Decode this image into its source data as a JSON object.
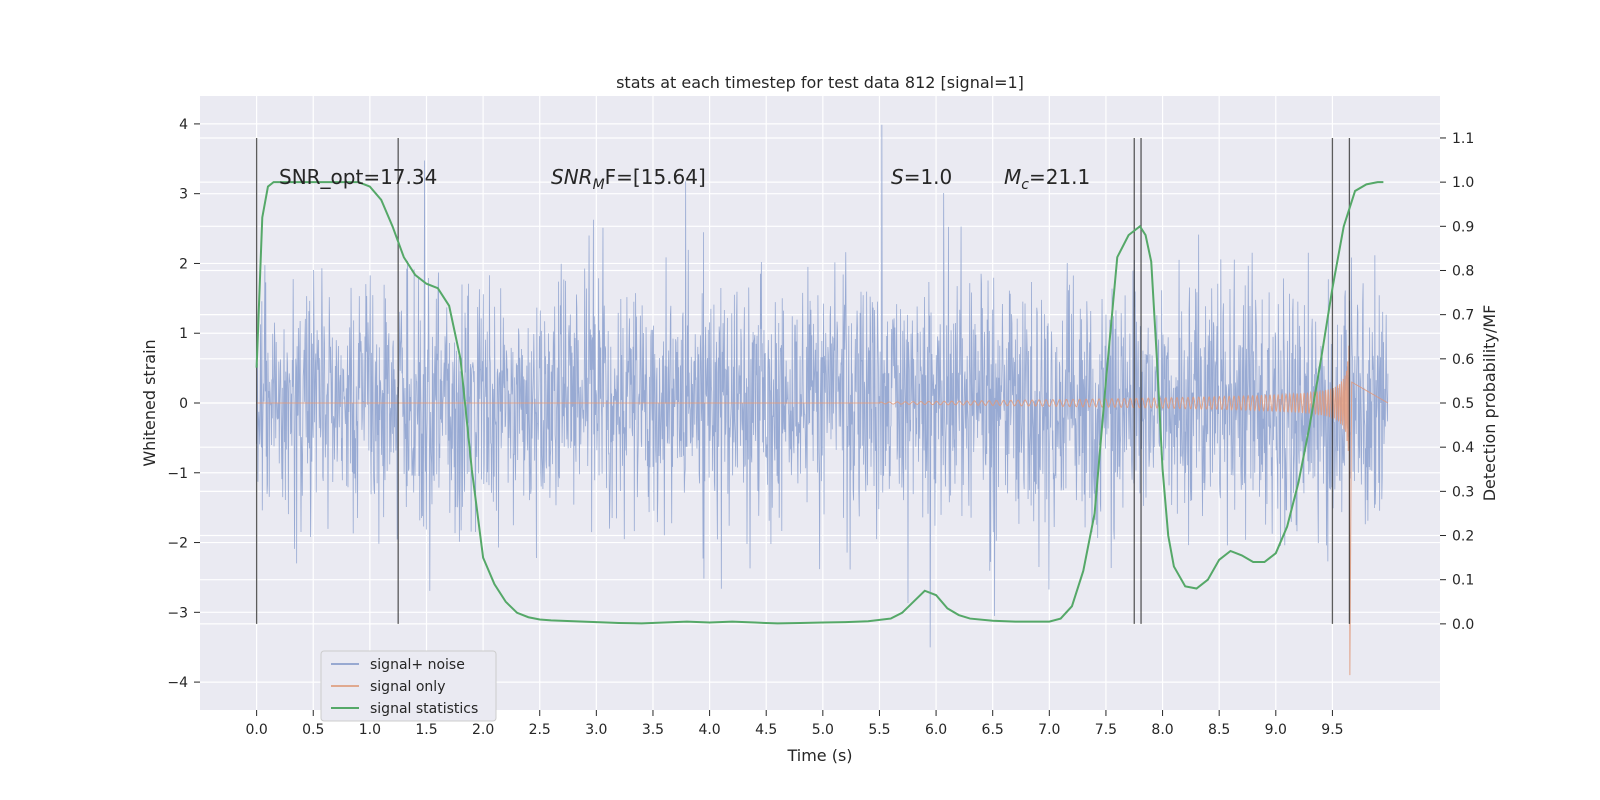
{
  "chart_data": {
    "type": "line",
    "title": "stats at each timestep for test data 812 [signal=1]",
    "xlabel": "Time (s)",
    "ylabel": "Whitened strain",
    "y2label": "Detection probability/MF",
    "xlim": [
      -0.5,
      10.45
    ],
    "ylim": [
      -4.4,
      4.4
    ],
    "y2lim": [
      -0.195,
      1.195
    ],
    "xticks": [
      "0.0",
      "0.5",
      "1.0",
      "1.5",
      "2.0",
      "2.5",
      "3.0",
      "3.5",
      "4.0",
      "4.5",
      "5.0",
      "5.5",
      "6.0",
      "6.5",
      "7.0",
      "7.5",
      "8.0",
      "8.5",
      "9.0",
      "9.5"
    ],
    "yticks": [
      "−4",
      "−3",
      "−2",
      "−1",
      "0",
      "1",
      "2",
      "3",
      "4"
    ],
    "y2ticks": [
      "0.0",
      "0.1",
      "0.2",
      "0.3",
      "0.4",
      "0.5",
      "0.6",
      "0.7",
      "0.8",
      "0.9",
      "1.0",
      "1.1"
    ],
    "grid": true,
    "legend_placement": "lower-left",
    "legend": [
      "signal+ noise",
      "signal only",
      "signal statistics"
    ],
    "annotations": {
      "snr_opt": "SNR_opt=17.34",
      "snr_mf_italic": "SNR",
      "snr_mf_sub": "M",
      "snr_mf_rest": "F=[15.64]",
      "s_italic": "S",
      "s_rest": "=1.0",
      "mc_italic": "M",
      "mc_sub": "c",
      "mc_rest": "=21.1"
    },
    "noise_band": {
      "x_start": 0.0,
      "x_end": 9.99,
      "typical_abs": 1.3,
      "max_abs": 4.0
    },
    "signal_chirp": {
      "x_start": 5.5,
      "x_merger": 9.65,
      "x_end": 9.99,
      "peak": 3.0,
      "trough": -3.9
    },
    "vertical_markers": [
      0.0,
      1.25,
      7.75,
      7.81,
      9.5,
      9.65
    ],
    "series": [
      {
        "name": "signal statistics",
        "axis": "y2",
        "color": "#55a868",
        "x": [
          0.0,
          0.05,
          0.1,
          0.15,
          0.25,
          0.4,
          0.6,
          0.8,
          0.9,
          1.0,
          1.1,
          1.2,
          1.3,
          1.4,
          1.5,
          1.6,
          1.7,
          1.8,
          1.9,
          2.0,
          2.1,
          2.2,
          2.3,
          2.4,
          2.5,
          2.6,
          2.8,
          3.0,
          3.2,
          3.4,
          3.6,
          3.8,
          4.0,
          4.2,
          4.4,
          4.6,
          4.8,
          5.0,
          5.2,
          5.4,
          5.6,
          5.7,
          5.8,
          5.9,
          6.0,
          6.1,
          6.2,
          6.3,
          6.5,
          6.7,
          6.9,
          7.0,
          7.1,
          7.2,
          7.3,
          7.4,
          7.5,
          7.6,
          7.7,
          7.8,
          7.85,
          7.9,
          7.95,
          8.0,
          8.05,
          8.1,
          8.2,
          8.3,
          8.4,
          8.5,
          8.6,
          8.7,
          8.8,
          8.9,
          9.0,
          9.1,
          9.2,
          9.3,
          9.4,
          9.5,
          9.6,
          9.7,
          9.8,
          9.9,
          9.95
        ],
        "values": [
          0.58,
          0.92,
          0.99,
          1.0,
          1.0,
          1.0,
          1.0,
          1.0,
          1.0,
          0.99,
          0.96,
          0.9,
          0.83,
          0.79,
          0.77,
          0.76,
          0.72,
          0.6,
          0.35,
          0.15,
          0.09,
          0.05,
          0.025,
          0.015,
          0.01,
          0.008,
          0.006,
          0.004,
          0.002,
          0.001,
          0.003,
          0.005,
          0.003,
          0.005,
          0.003,
          0.001,
          0.002,
          0.003,
          0.004,
          0.006,
          0.012,
          0.025,
          0.05,
          0.075,
          0.065,
          0.035,
          0.02,
          0.012,
          0.007,
          0.005,
          0.005,
          0.005,
          0.012,
          0.04,
          0.12,
          0.25,
          0.55,
          0.83,
          0.88,
          0.9,
          0.88,
          0.82,
          0.6,
          0.35,
          0.2,
          0.13,
          0.085,
          0.08,
          0.1,
          0.145,
          0.165,
          0.155,
          0.14,
          0.14,
          0.16,
          0.22,
          0.32,
          0.45,
          0.6,
          0.76,
          0.9,
          0.98,
          0.995,
          1.0,
          1.0
        ]
      }
    ]
  }
}
